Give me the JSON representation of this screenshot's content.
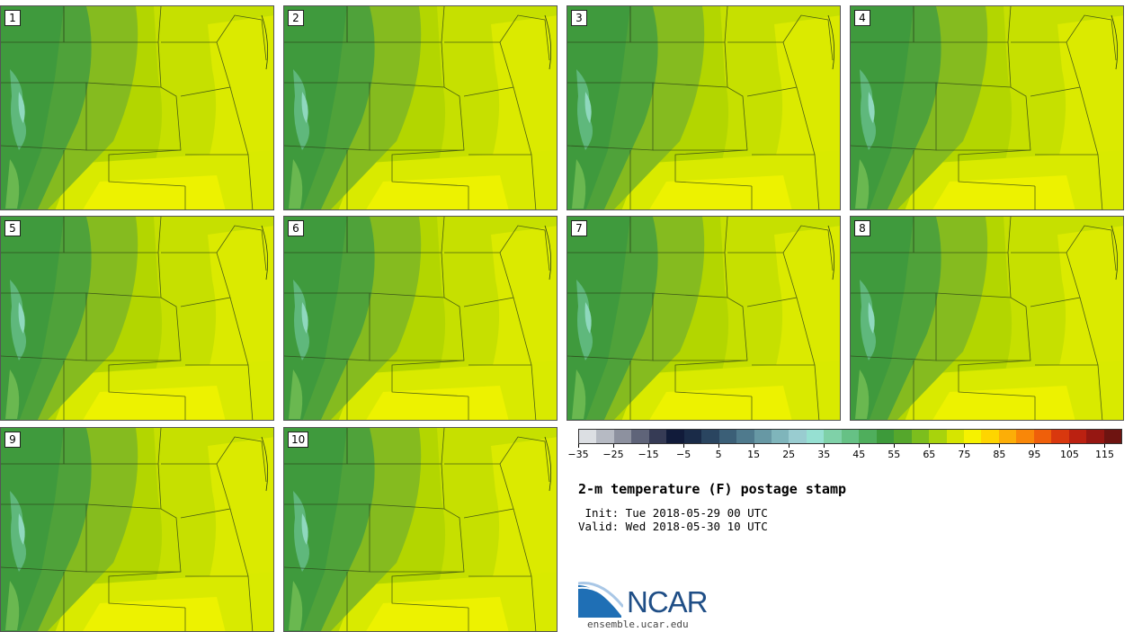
{
  "panels": [
    {
      "label": "1"
    },
    {
      "label": "2"
    },
    {
      "label": "3"
    },
    {
      "label": "4"
    },
    {
      "label": "5"
    },
    {
      "label": "6"
    },
    {
      "label": "7"
    },
    {
      "label": "8"
    },
    {
      "label": "9"
    },
    {
      "label": "10"
    }
  ],
  "colorbar": {
    "colors": [
      "#dcdfe3",
      "#b6bac3",
      "#8d919f",
      "#5f6479",
      "#363b55",
      "#111b3a",
      "#1a2b48",
      "#2a4560",
      "#3b5f77",
      "#4f7a8d",
      "#6798a4",
      "#7fb5bb",
      "#99ccd0",
      "#96e0d2",
      "#7fd1a8",
      "#66c185",
      "#4fae5c",
      "#3d9a3a",
      "#55a72c",
      "#7cbe1d",
      "#a8d30c",
      "#d6e500",
      "#f6f200",
      "#fed500",
      "#fcae07",
      "#f98708",
      "#ef5f0a",
      "#d9380e",
      "#bb2111",
      "#961712",
      "#6e1411"
    ],
    "ticks": [
      "−35",
      "−25",
      "−15",
      "−5",
      "5",
      "15",
      "25",
      "35",
      "45",
      "55",
      "65",
      "75",
      "85",
      "95",
      "105",
      "115"
    ]
  },
  "title": "2-m temperature (F) postage stamp",
  "init": " Init: Tue 2018-05-29 00 UTC",
  "valid": "Valid: Wed 2018-05-30 10 UTC",
  "logo": {
    "name": "NCAR",
    "url": "ensemble.ucar.edu"
  }
}
